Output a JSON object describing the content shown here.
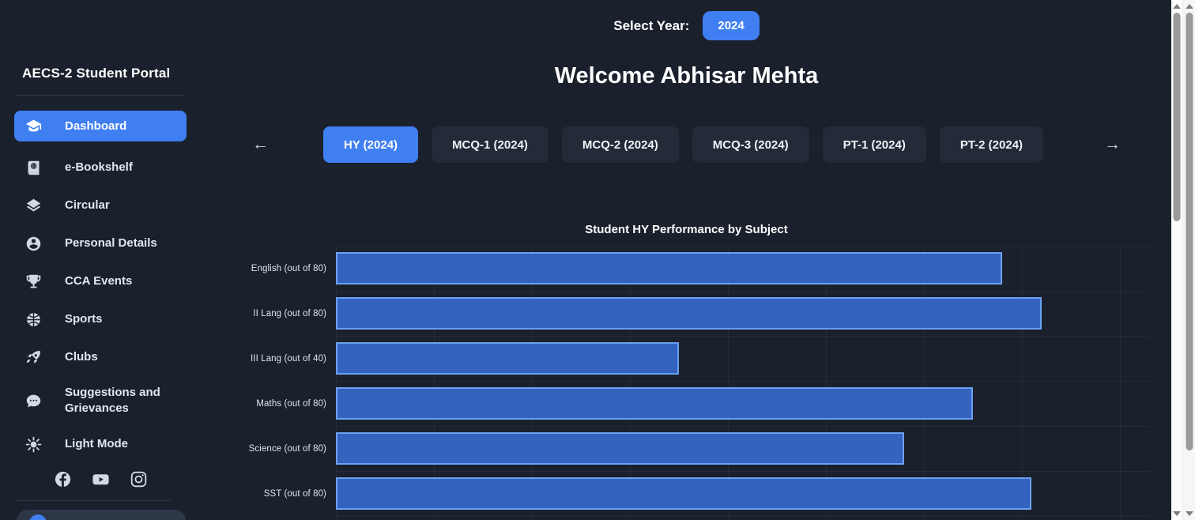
{
  "header": {
    "select_year_label": "Select Year:",
    "year_button": "2024",
    "welcome": "Welcome Abhisar Mehta"
  },
  "sidebar": {
    "title": "AECS-2 Student Portal",
    "items": [
      {
        "label": "Dashboard",
        "icon": "graduation-cap-icon",
        "active": true
      },
      {
        "label": "e-Bookshelf",
        "icon": "book-globe-icon",
        "active": false
      },
      {
        "label": "Circular",
        "icon": "layers-icon",
        "active": false
      },
      {
        "label": "Personal Details",
        "icon": "person-circle-icon",
        "active": false
      },
      {
        "label": "CCA Events",
        "icon": "trophy-icon",
        "active": false
      },
      {
        "label": "Sports",
        "icon": "basketball-icon",
        "active": false
      },
      {
        "label": "Clubs",
        "icon": "rocket-icon",
        "active": false
      },
      {
        "label": "Suggestions and Grievances",
        "icon": "chat-dots-icon",
        "active": false
      },
      {
        "label": "Light Mode",
        "icon": "sun-icon",
        "active": false
      }
    ],
    "social_icons": [
      "facebook",
      "youtube",
      "instagram"
    ]
  },
  "tabs": {
    "prev_arrow": "←",
    "next_arrow": "→",
    "items": [
      {
        "label": "HY (2024)",
        "active": true
      },
      {
        "label": "MCQ-1 (2024)",
        "active": false
      },
      {
        "label": "MCQ-2 (2024)",
        "active": false
      },
      {
        "label": "MCQ-3 (2024)",
        "active": false
      },
      {
        "label": "PT-1 (2024)",
        "active": false
      },
      {
        "label": "PT-2 (2024)",
        "active": false
      }
    ]
  },
  "chart_data": {
    "type": "bar",
    "orientation": "horizontal",
    "title": "Student HY Performance by Subject",
    "categories": [
      "English (out of 80)",
      "II Lang (out of 80)",
      "III Lang (out of 40)",
      "Maths (out of 80)",
      "Science (out of 80)",
      "SST (out of 80)"
    ],
    "values": [
      68,
      72,
      35,
      65,
      58,
      71
    ],
    "xlim": [
      0,
      80
    ],
    "gridline_step": 10,
    "grid": true,
    "legend": "none",
    "bar_color": "#3363be",
    "bar_border_color": "#6aa1f0"
  },
  "colors": {
    "background": "#1a202c",
    "accent_blue": "#3f7ff2",
    "tab_inactive": "#232b39",
    "card": "#2d3748"
  }
}
